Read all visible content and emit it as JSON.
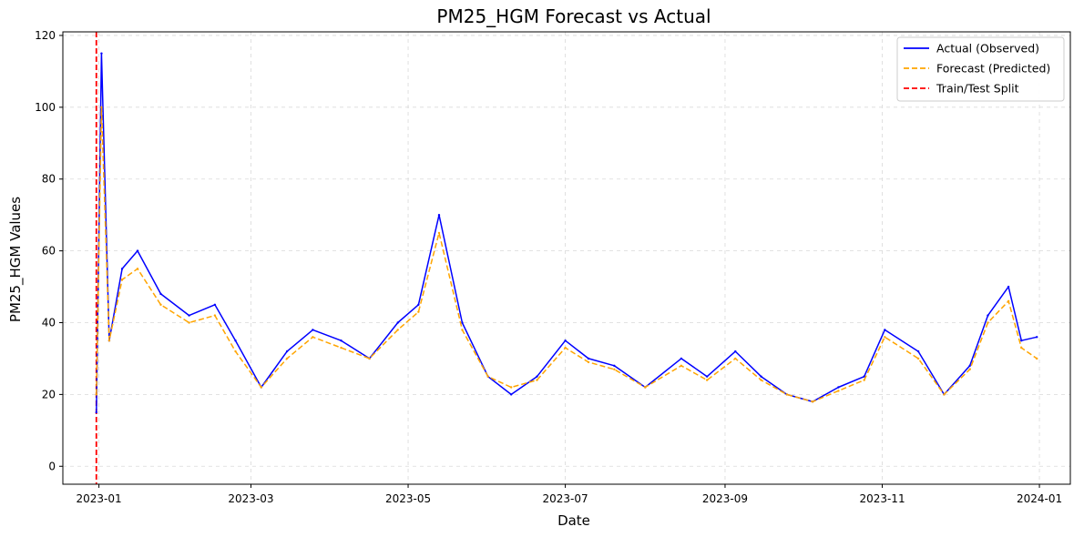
{
  "chart_data": {
    "type": "line",
    "title": "PM25_HGM Forecast vs Actual",
    "xlabel": "Date",
    "ylabel": "PM25_HGM Values",
    "x_range": [
      "2022-12-18",
      "2024-01-13"
    ],
    "ylim": [
      -5,
      121
    ],
    "x_ticks": [
      {
        "date": "2023-01-01",
        "label": "2023-01"
      },
      {
        "date": "2023-03-01",
        "label": "2023-03"
      },
      {
        "date": "2023-05-01",
        "label": "2023-05"
      },
      {
        "date": "2023-07-01",
        "label": "2023-07"
      },
      {
        "date": "2023-09-01",
        "label": "2023-09"
      },
      {
        "date": "2023-11-01",
        "label": "2023-11"
      },
      {
        "date": "2024-01-01",
        "label": "2024-01"
      }
    ],
    "y_ticks": [
      0,
      20,
      40,
      60,
      80,
      100,
      120
    ],
    "grid": true,
    "legend_position": "top-right",
    "split": {
      "name": "Train/Test Split",
      "date": "2022-12-31",
      "color": "#ff0000"
    },
    "series": [
      {
        "name": "Actual (Observed)",
        "color": "#0000ff",
        "style": "solid",
        "x": [
          "2022-12-31",
          "2023-01-02",
          "2023-01-05",
          "2023-01-10",
          "2023-01-16",
          "2023-01-25",
          "2023-02-05",
          "2023-02-15",
          "2023-02-23",
          "2023-03-05",
          "2023-03-15",
          "2023-03-25",
          "2023-04-05",
          "2023-04-16",
          "2023-04-27",
          "2023-05-05",
          "2023-05-13",
          "2023-05-22",
          "2023-06-01",
          "2023-06-10",
          "2023-06-20",
          "2023-07-01",
          "2023-07-10",
          "2023-07-20",
          "2023-08-01",
          "2023-08-15",
          "2023-08-25",
          "2023-09-05",
          "2023-09-15",
          "2023-09-25",
          "2023-10-05",
          "2023-10-15",
          "2023-10-25",
          "2023-11-02",
          "2023-11-15",
          "2023-11-25",
          "2023-12-05",
          "2023-12-12",
          "2023-12-20",
          "2023-12-25",
          "2023-12-31"
        ],
        "values": [
          15,
          115,
          35,
          55,
          60,
          48,
          42,
          45,
          35,
          22,
          32,
          38,
          35,
          30,
          40,
          45,
          70,
          40,
          25,
          20,
          25,
          35,
          30,
          28,
          22,
          30,
          25,
          32,
          25,
          20,
          18,
          22,
          25,
          38,
          32,
          20,
          28,
          42,
          50,
          35,
          36
        ]
      },
      {
        "name": "Forecast (Predicted)",
        "color": "#ffa500",
        "style": "dashed",
        "x": [
          "2022-12-31",
          "2023-01-02",
          "2023-01-05",
          "2023-01-10",
          "2023-01-16",
          "2023-01-25",
          "2023-02-05",
          "2023-02-15",
          "2023-02-23",
          "2023-03-05",
          "2023-03-15",
          "2023-03-25",
          "2023-04-05",
          "2023-04-16",
          "2023-04-27",
          "2023-05-05",
          "2023-05-13",
          "2023-05-22",
          "2023-06-01",
          "2023-06-10",
          "2023-06-20",
          "2023-07-01",
          "2023-07-10",
          "2023-07-20",
          "2023-08-01",
          "2023-08-15",
          "2023-08-25",
          "2023-09-05",
          "2023-09-15",
          "2023-09-25",
          "2023-10-05",
          "2023-10-15",
          "2023-10-25",
          "2023-11-02",
          "2023-11-15",
          "2023-11-25",
          "2023-12-05",
          "2023-12-12",
          "2023-12-20",
          "2023-12-25",
          "2023-12-31"
        ],
        "values": [
          20,
          100,
          35,
          52,
          55,
          45,
          40,
          42,
          32,
          22,
          30,
          36,
          33,
          30,
          38,
          43,
          65,
          38,
          25,
          22,
          24,
          33,
          29,
          27,
          22,
          28,
          24,
          30,
          24,
          20,
          18,
          21,
          24,
          36,
          30,
          20,
          27,
          40,
          46,
          33,
          30
        ]
      }
    ]
  }
}
